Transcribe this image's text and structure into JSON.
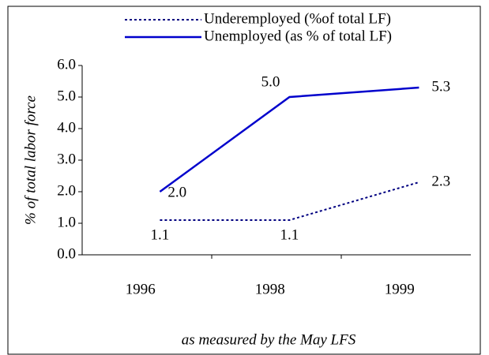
{
  "chart_data": {
    "type": "line",
    "categories": [
      "1996",
      "1998",
      "1999"
    ],
    "series": [
      {
        "name": "Underemployed (%of total LF)",
        "color": "#000080",
        "dash": "dotted",
        "values": [
          1.1,
          1.1,
          2.3
        ],
        "value_labels": [
          "1.1",
          "1.1",
          "2.3"
        ]
      },
      {
        "name": "Unemployed (as % of total LF)",
        "color": "#0000cc",
        "dash": "solid",
        "values": [
          2.0,
          5.0,
          5.3
        ],
        "value_labels": [
          "2.0",
          "5.0",
          "5.3"
        ]
      }
    ],
    "ylim": [
      0,
      6
    ],
    "yticks": [
      {
        "value": 0,
        "label": "0.0"
      },
      {
        "value": 1,
        "label": "1.0"
      },
      {
        "value": 2,
        "label": "2.0"
      },
      {
        "value": 3,
        "label": "3.0"
      },
      {
        "value": 4,
        "label": "4.0"
      },
      {
        "value": 5,
        "label": "5.0"
      },
      {
        "value": 6,
        "label": "6.0"
      }
    ],
    "ylabel": "% of total labor force",
    "xlabel": "as measured by the May LFS",
    "legend": "top",
    "grid": false
  }
}
